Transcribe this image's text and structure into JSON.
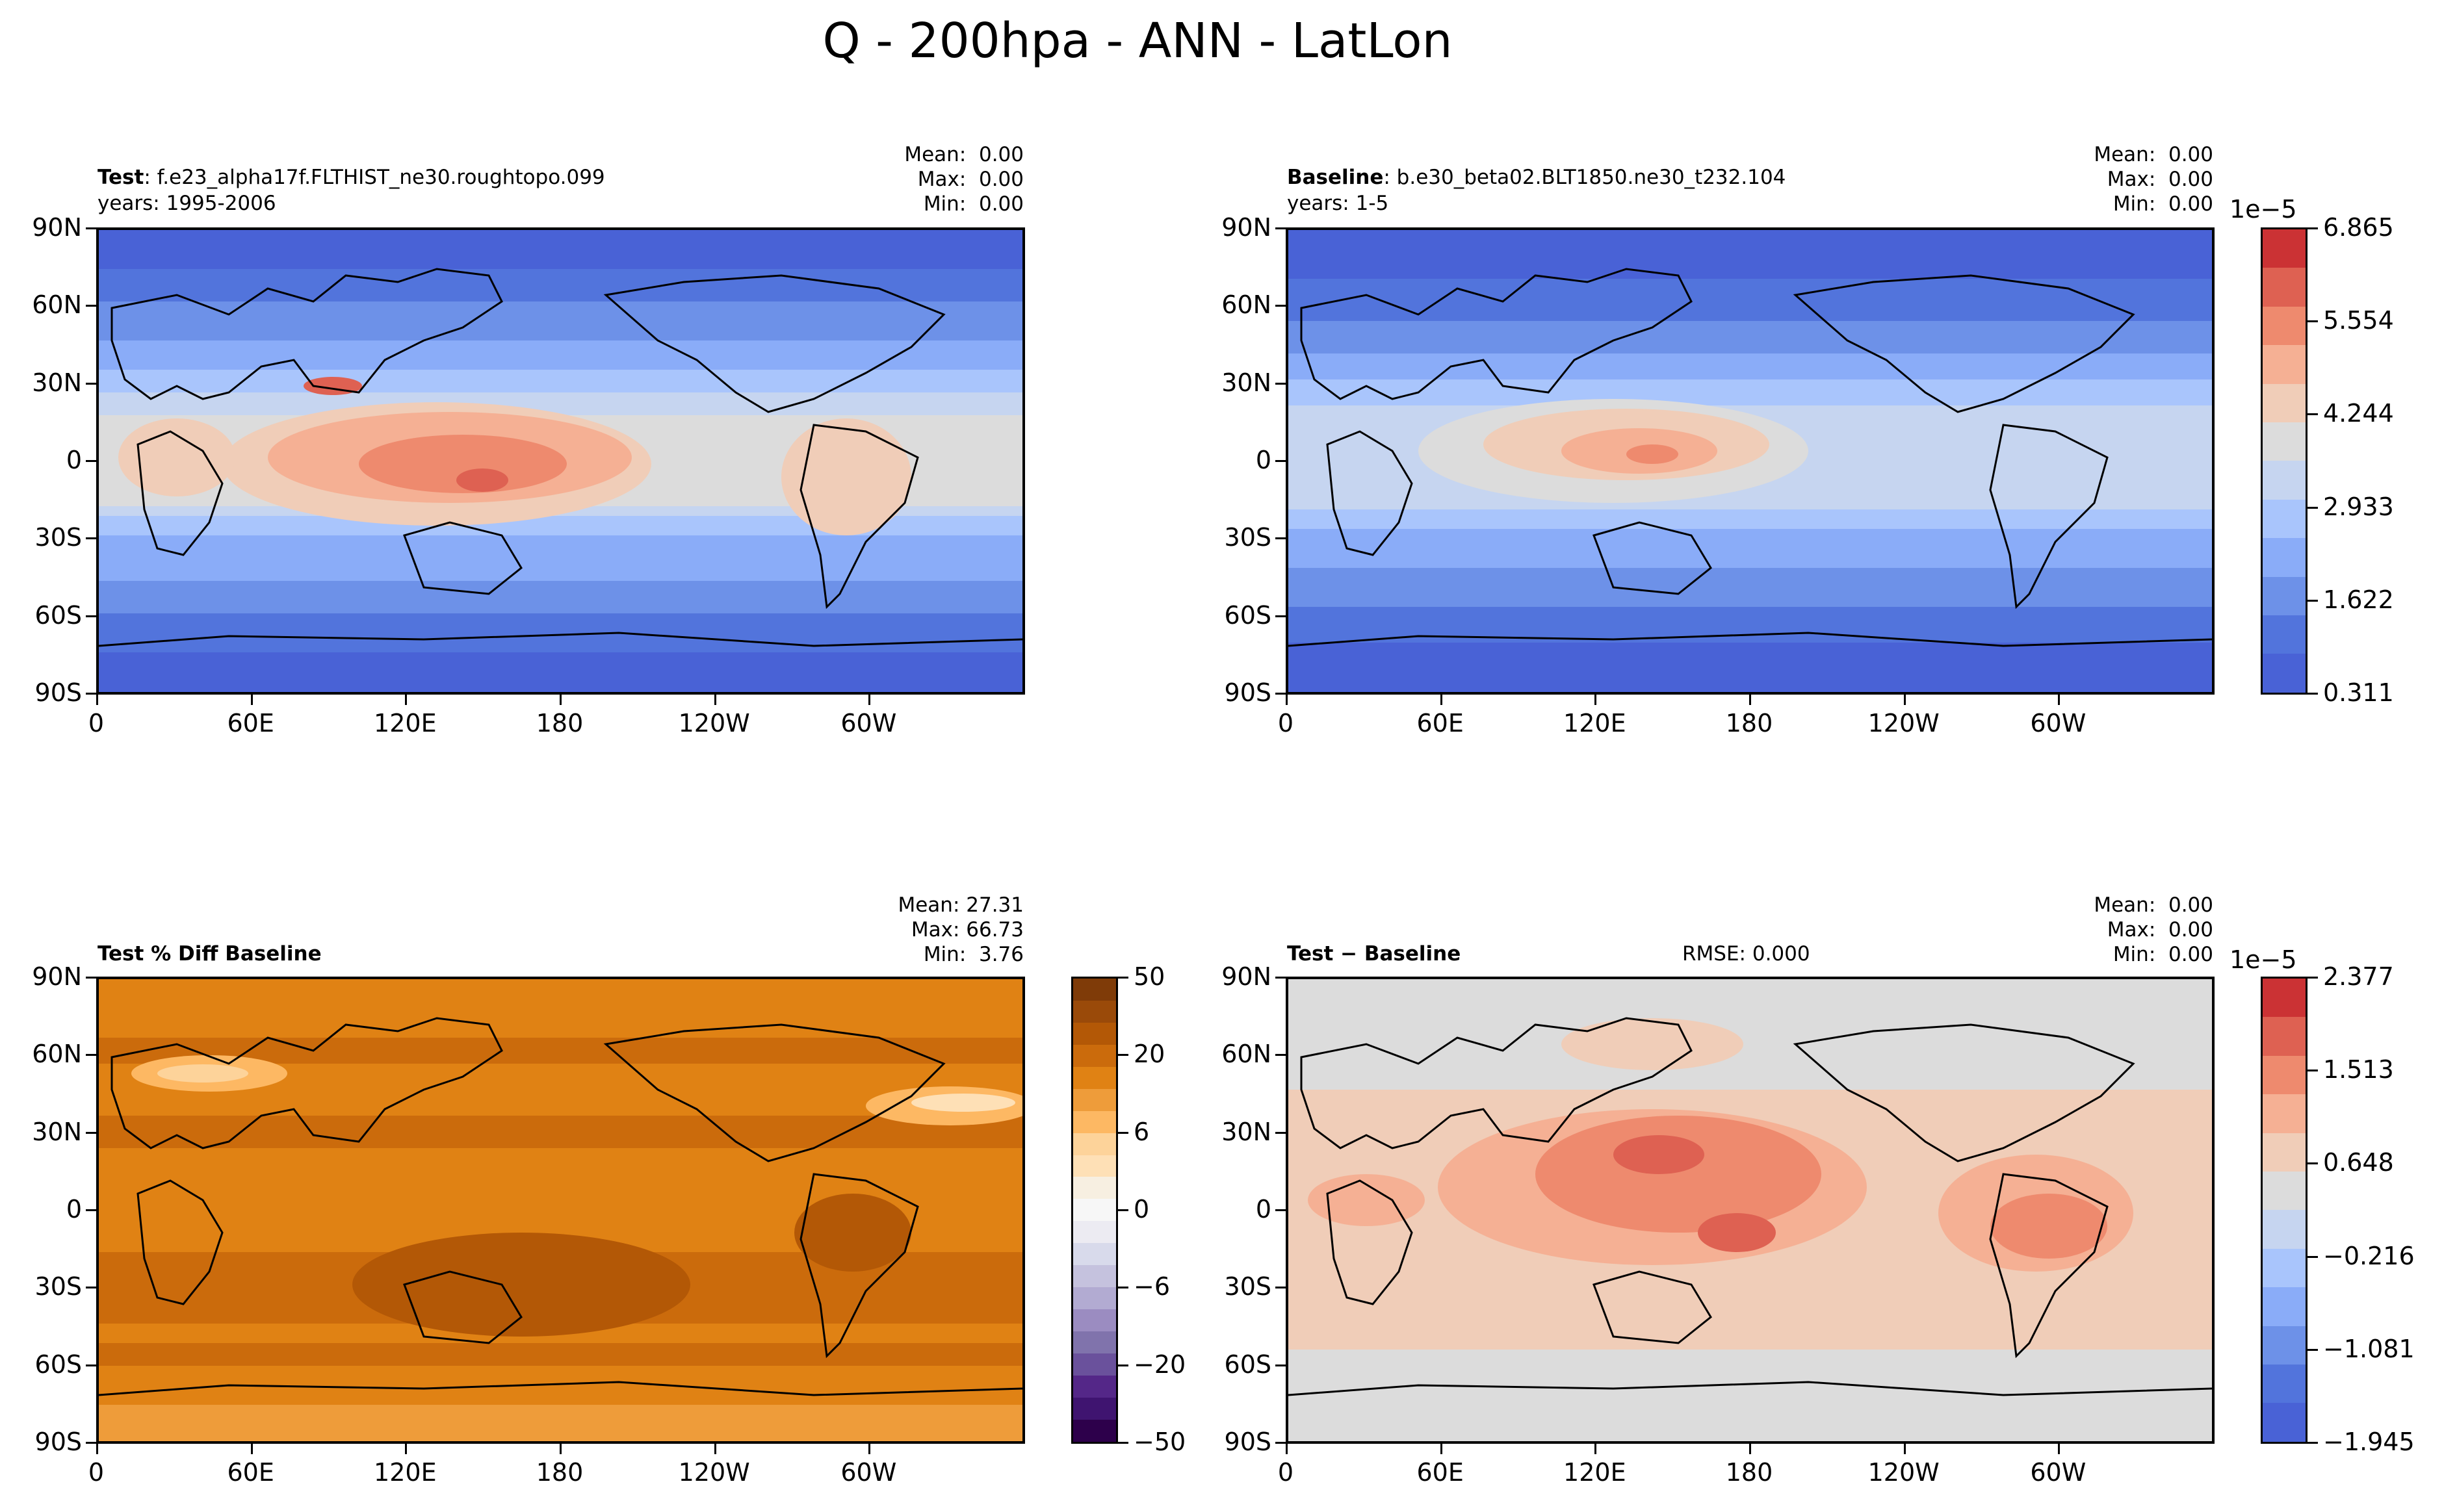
{
  "title": "Q - 200hpa - ANN - LatLon",
  "panels": {
    "test": {
      "label_bold": "Test",
      "label_rest": ": f.e23_alpha17f.FLTHIST_ne30.roughtopo.099",
      "years": "years: 1995-2006",
      "mean": "Mean:  0.00",
      "max": "Max:  0.00",
      "min": "Min:  0.00"
    },
    "baseline": {
      "label_bold": "Baseline",
      "label_rest": ": b.e30_beta02.BLT1850.ne30_t232.104",
      "years": "years: 1-5",
      "mean": "Mean:  0.00",
      "max": "Max:  0.00",
      "min": "Min:  0.00"
    },
    "pctdiff": {
      "label_bold": "Test % Diff Baseline",
      "mean": "Mean: 27.31",
      "max": "Max: 66.73",
      "min": "Min:  3.76"
    },
    "diff": {
      "label_bold": "Test − Baseline",
      "rmse": "RMSE: 0.000",
      "mean": "Mean:  0.00",
      "max": "Max:  0.00",
      "min": "Min:  0.00"
    }
  },
  "axes": {
    "lat_ticks": [
      "90N",
      "60N",
      "30N",
      "0",
      "30S",
      "60S",
      "90S"
    ],
    "lon_ticks": [
      "0",
      "60E",
      "120E",
      "180",
      "120W",
      "60W"
    ]
  },
  "colorbars": {
    "main": {
      "exponent": "1e−5",
      "ticks": [
        "6.865",
        "5.554",
        "4.244",
        "2.933",
        "1.622",
        "0.311"
      ],
      "colors": [
        "#cb3234",
        "#de6152",
        "#ee8a6e",
        "#f5b094",
        "#f0cdb8",
        "#dcdcdc",
        "#c6d5f0",
        "#a9c5fc",
        "#8aacf8",
        "#6d91e8",
        "#5274dc",
        "#4962d6"
      ]
    },
    "pct": {
      "ticks": [
        "50",
        "20",
        "6",
        "0",
        "−6",
        "−20",
        "−50"
      ],
      "colors": [
        "#7f3b08",
        "#9a4a09",
        "#b35806",
        "#cb6b0c",
        "#e08214",
        "#ee9c3a",
        "#fdb863",
        "#fdd39a",
        "#fee0b6",
        "#f7efe1",
        "#f7f7f7",
        "#ecebf2",
        "#d8daeb",
        "#c5c2de",
        "#b2abd2",
        "#9b8cc1",
        "#8073ac",
        "#6a519c",
        "#542788",
        "#3f1470",
        "#2d004b"
      ]
    },
    "diff": {
      "exponent": "1e−5",
      "ticks": [
        "2.377",
        "1.513",
        "0.648",
        "−0.216",
        "−1.081",
        "−1.945"
      ],
      "colors": [
        "#cb3234",
        "#de6152",
        "#ee8a6e",
        "#f5b094",
        "#f0cdb8",
        "#dcdcdc",
        "#c6d5f0",
        "#a9c5fc",
        "#8aacf8",
        "#6d91e8",
        "#5274dc",
        "#4962d6"
      ]
    }
  },
  "chart_data": [
    {
      "type": "heatmap",
      "title": "Test: f.e23_alpha17f.FLTHIST_ne30.roughtopo.099",
      "units_exponent": "1e-5",
      "x_ticks": [
        "0",
        "60E",
        "120E",
        "180",
        "120W",
        "60W"
      ],
      "y_ticks": [
        "90N",
        "60N",
        "30N",
        "0",
        "30S",
        "60S",
        "90S"
      ],
      "colorbar_levels": [
        0.311,
        1.622,
        2.933,
        4.244,
        5.554,
        6.865
      ],
      "stats": {
        "mean": 0.0,
        "max": 0.0,
        "min": 0.0
      }
    },
    {
      "type": "heatmap",
      "title": "Baseline: b.e30_beta02.BLT1850.ne30_t232.104",
      "units_exponent": "1e-5",
      "x_ticks": [
        "0",
        "60E",
        "120E",
        "180",
        "120W",
        "60W"
      ],
      "y_ticks": [
        "90N",
        "60N",
        "30N",
        "0",
        "30S",
        "60S",
        "90S"
      ],
      "colorbar_levels": [
        0.311,
        1.622,
        2.933,
        4.244,
        5.554,
        6.865
      ],
      "stats": {
        "mean": 0.0,
        "max": 0.0,
        "min": 0.0
      }
    },
    {
      "type": "heatmap",
      "title": "Test % Diff Baseline",
      "x_ticks": [
        "0",
        "60E",
        "120E",
        "180",
        "120W",
        "60W"
      ],
      "y_ticks": [
        "90N",
        "60N",
        "30N",
        "0",
        "30S",
        "60S",
        "90S"
      ],
      "colorbar_levels": [
        -50,
        -20,
        -6,
        0,
        6,
        20,
        50
      ],
      "stats": {
        "mean": 27.31,
        "max": 66.73,
        "min": 3.76
      }
    },
    {
      "type": "heatmap",
      "title": "Test − Baseline",
      "units_exponent": "1e-5",
      "x_ticks": [
        "0",
        "60E",
        "120E",
        "180",
        "120W",
        "60W"
      ],
      "y_ticks": [
        "90N",
        "60N",
        "30N",
        "0",
        "30S",
        "60S",
        "90S"
      ],
      "colorbar_levels": [
        -1.945,
        -1.081,
        -0.216,
        0.648,
        1.513,
        2.377
      ],
      "stats": {
        "mean": 0.0,
        "max": 0.0,
        "min": 0.0,
        "rmse": 0.0
      }
    }
  ]
}
